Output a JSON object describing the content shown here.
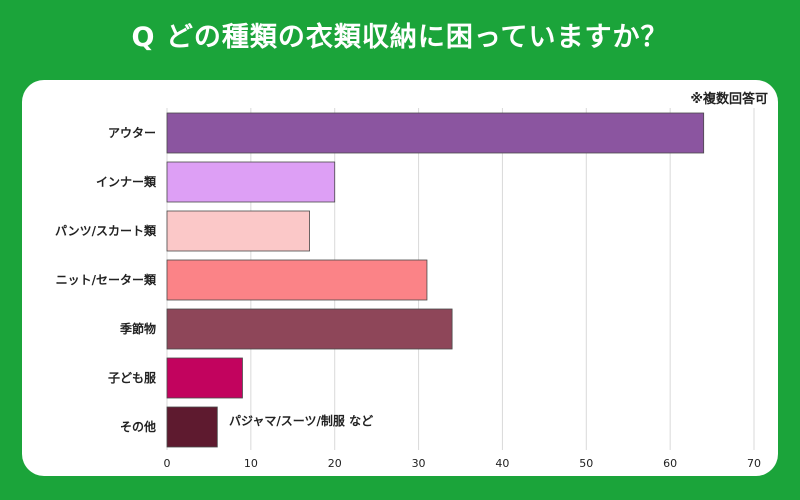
{
  "header": {
    "title": "Q どの種類の衣類収納に困っていますか？",
    "note": "※複数回答可"
  },
  "chart_data": {
    "type": "bar",
    "orientation": "horizontal",
    "categories": [
      "アウター",
      "インナー類",
      "パンツ/スカート類",
      "ニット/セーター類",
      "季節物",
      "子ども服",
      "その他"
    ],
    "values": [
      64,
      20,
      17,
      31,
      34,
      9,
      6
    ],
    "colors": [
      "#8b55a0",
      "#dd9ff5",
      "#fbc8c8",
      "#fb8387",
      "#8e4659",
      "#c2035e",
      "#5e1a2f"
    ],
    "xlim": [
      0,
      70
    ],
    "xticks": [
      "0",
      "10",
      "20",
      "30",
      "40",
      "50",
      "60",
      "70"
    ],
    "grid": true,
    "annotations": [
      {
        "category": "その他",
        "text": "パジャマ/スーツ/制服 など"
      }
    ]
  }
}
